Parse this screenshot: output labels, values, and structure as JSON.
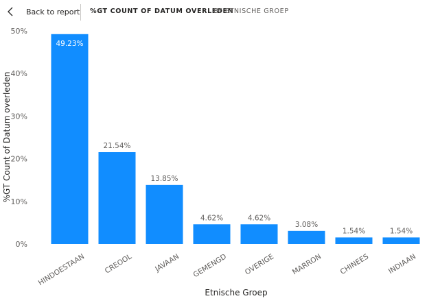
{
  "header": {
    "back_label": "Back to report",
    "title": "%GT COUNT OF DATUM OVERLEDEN",
    "subtitle": "BY ETNISCHE GROEP"
  },
  "colors": {
    "bar": "#118DFF",
    "axis_text": "#605e5c",
    "title_text": "#252423"
  },
  "chart_data": {
    "type": "bar",
    "categories": [
      "HINDOESTAAN",
      "CREOOL",
      "JAVAAN",
      "GEMENGD",
      "OVERIGE",
      "MARRON",
      "CHINEES",
      "INDIAAN"
    ],
    "values": [
      49.23,
      21.54,
      13.85,
      4.62,
      4.62,
      3.08,
      1.54,
      1.54
    ],
    "data_labels": [
      "49.23%",
      "21.54%",
      "13.85%",
      "4.62%",
      "4.62%",
      "3.08%",
      "1.54%",
      "1.54%"
    ],
    "xlabel": "Etnische Groep",
    "ylabel": "%GT Count of Datum overleden",
    "ylim": [
      0,
      50
    ],
    "yticks": [
      0,
      10,
      20,
      30,
      40,
      50
    ],
    "ytick_labels": [
      "0%",
      "10%",
      "20%",
      "30%",
      "40%",
      "50%"
    ],
    "grid": false
  }
}
